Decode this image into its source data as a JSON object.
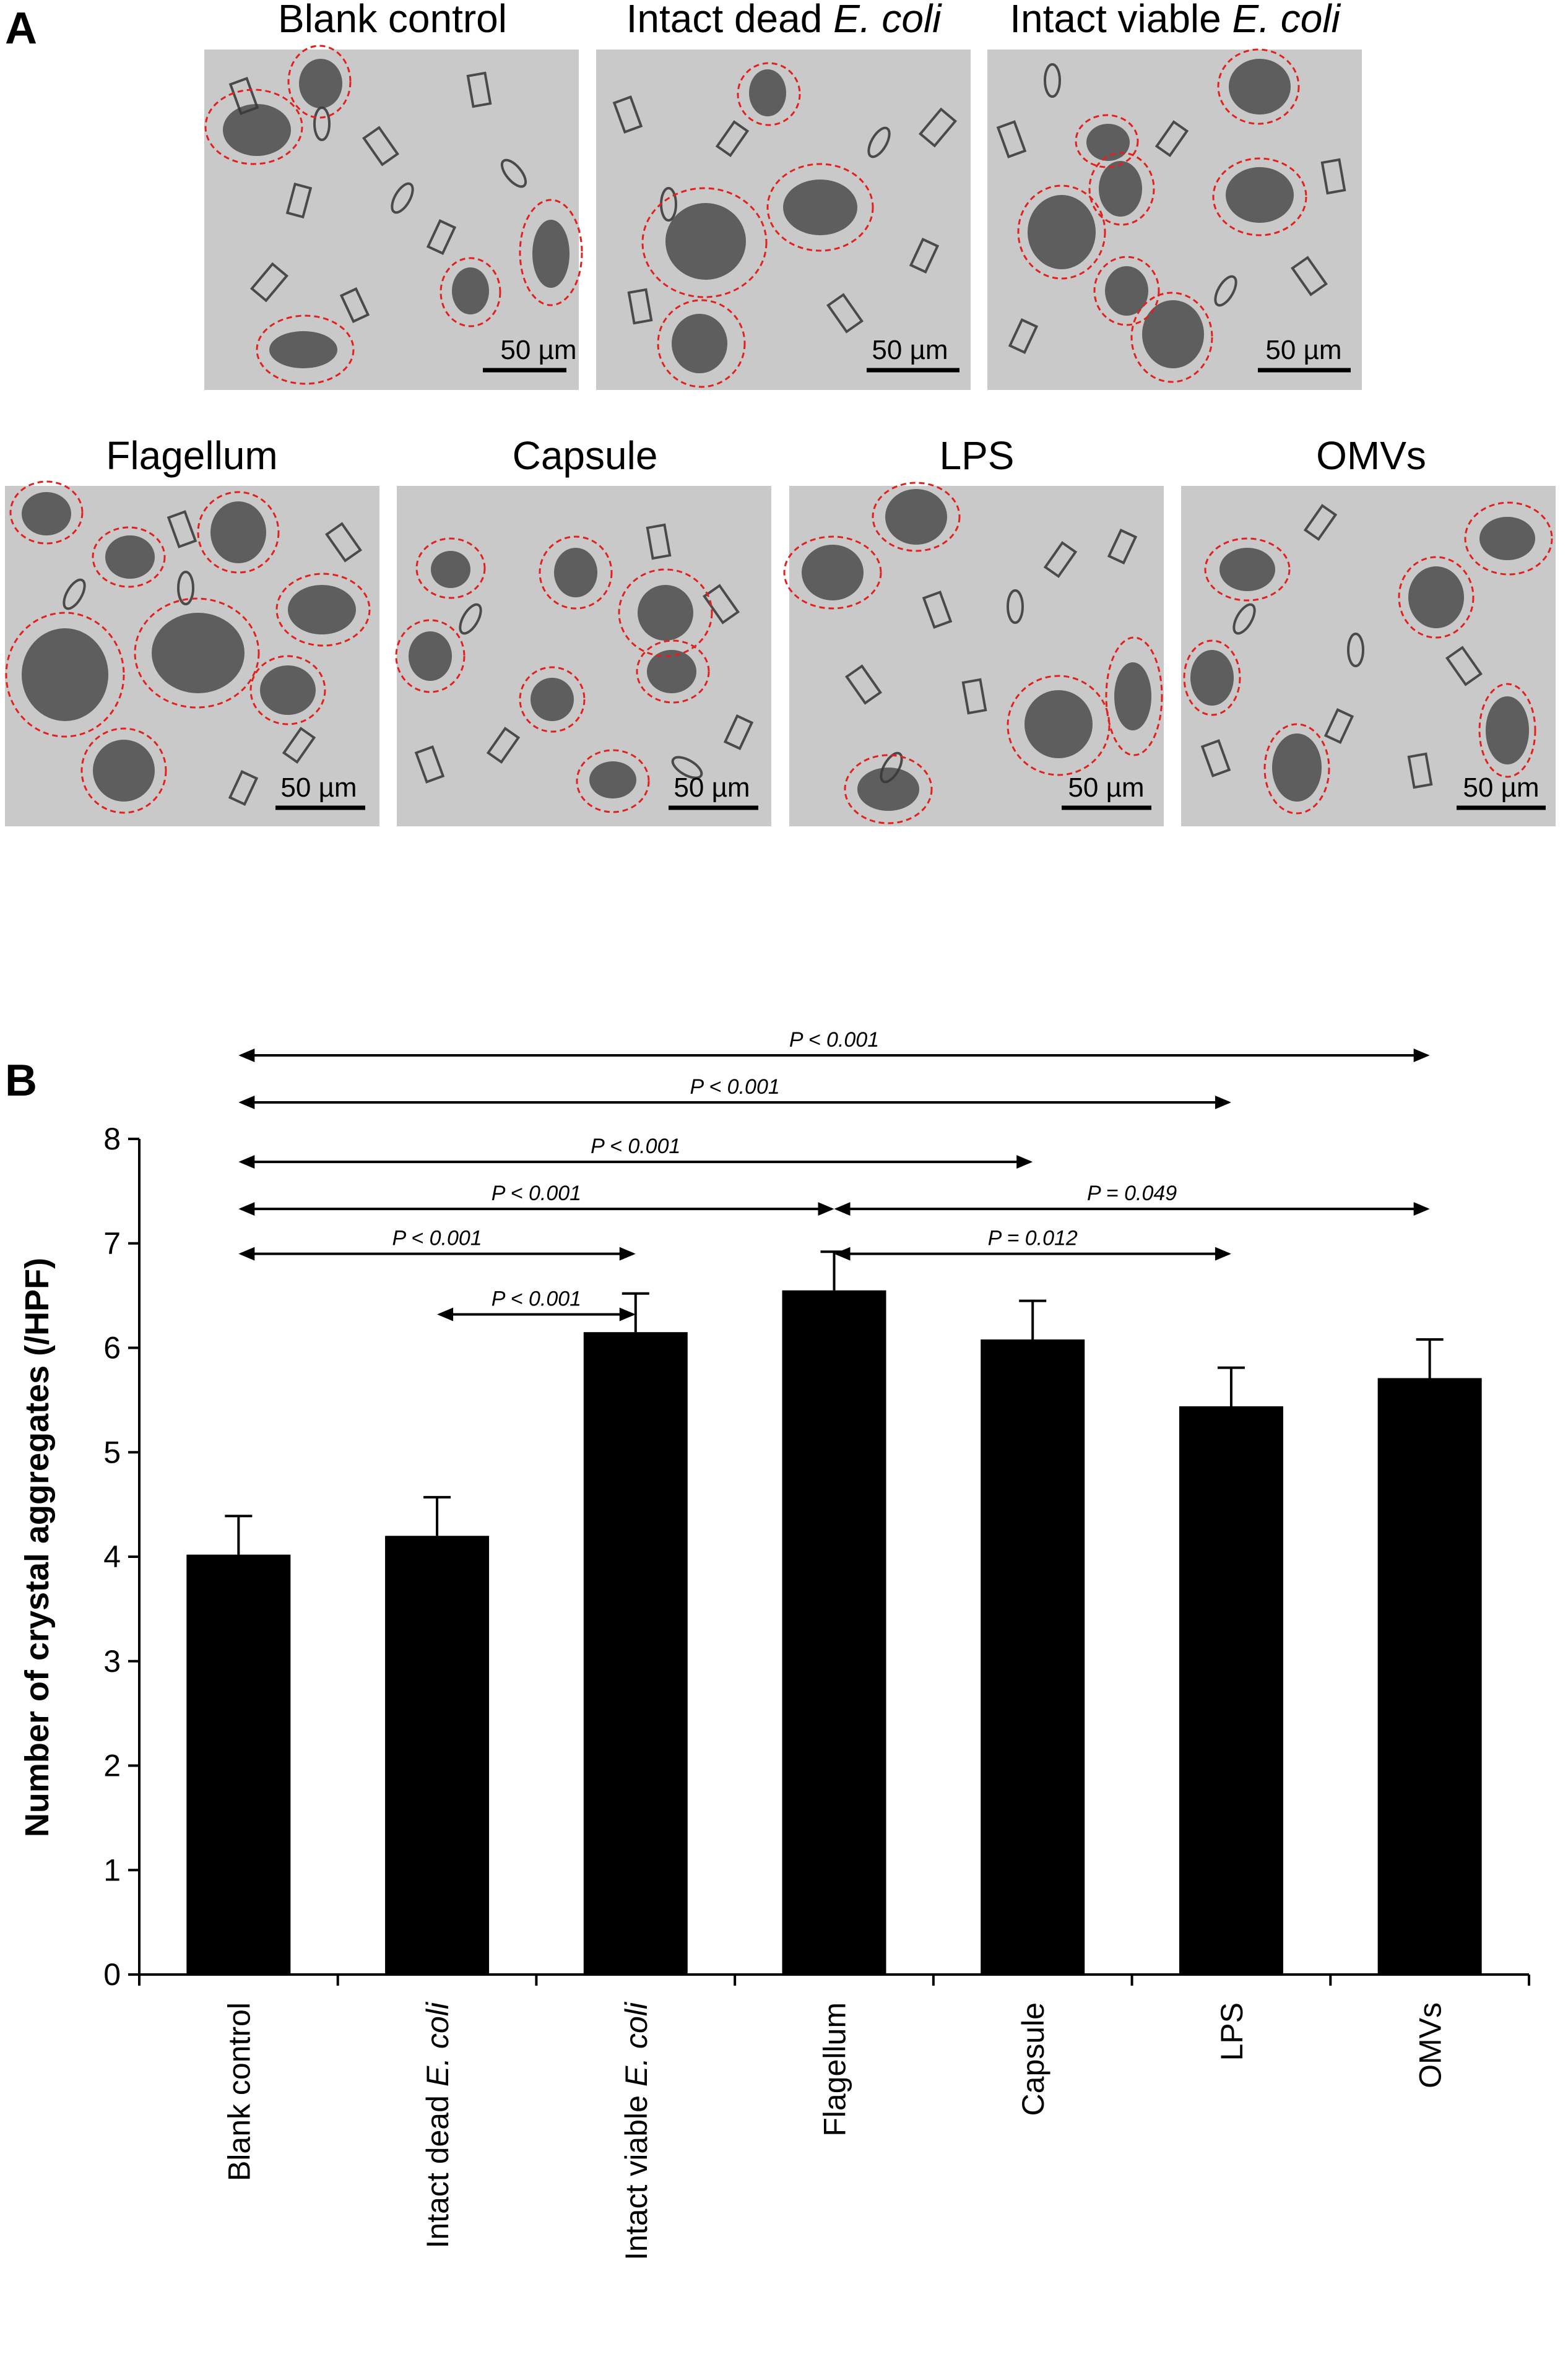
{
  "panel_a": {
    "letter": "A",
    "panels": [
      {
        "title": "Blank control",
        "title_italic": "",
        "scale": "50 µm"
      },
      {
        "title": "Intact dead ",
        "title_italic": "E. coli",
        "scale": "50 µm"
      },
      {
        "title": "Intact viable ",
        "title_italic": "E. coli",
        "scale": "50 µm"
      },
      {
        "title": "Flagellum",
        "title_italic": "",
        "scale": "50 µm"
      },
      {
        "title": "Capsule",
        "title_italic": "",
        "scale": "50 µm"
      },
      {
        "title": "LPS",
        "title_italic": "",
        "scale": "50 µm"
      },
      {
        "title": "OMVs",
        "title_italic": "",
        "scale": "50 µm"
      }
    ]
  },
  "panel_b": {
    "letter": "B"
  },
  "colors": {
    "bar": "#000000",
    "circle": "#e0211d",
    "micrograph_bg": "#c9c9c9"
  },
  "chart_data": {
    "type": "bar",
    "title": "",
    "ylabel": "Number of crystal aggregates (/HPF)",
    "xlabel": "",
    "ylim": [
      0,
      8
    ],
    "yticks": [
      0,
      1,
      2,
      3,
      4,
      5,
      6,
      7,
      8
    ],
    "grid": false,
    "categories": [
      {
        "plain": "Blank control",
        "italic": ""
      },
      {
        "plain": "Intact dead ",
        "italic": "E. coli"
      },
      {
        "plain": "Intact viable ",
        "italic": "E. coli"
      },
      {
        "plain": "Flagellum",
        "italic": ""
      },
      {
        "plain": "Capsule",
        "italic": ""
      },
      {
        "plain": "LPS",
        "italic": ""
      },
      {
        "plain": "OMVs",
        "italic": ""
      }
    ],
    "values": [
      4.02,
      4.2,
      6.15,
      6.55,
      6.08,
      5.44,
      5.71
    ],
    "errors": [
      0.37,
      0.37,
      0.37,
      0.37,
      0.37,
      0.37,
      0.37
    ],
    "comparisons": [
      {
        "from": 0,
        "to": 6,
        "label": "P < 0.001",
        "y": 8.8
      },
      {
        "from": 0,
        "to": 5,
        "label": "P < 0.001",
        "y": 8.35
      },
      {
        "from": 0,
        "to": 4,
        "label": "P < 0.001",
        "y": 7.78
      },
      {
        "from": 0,
        "to": 3,
        "label": "P < 0.001",
        "y": 7.33
      },
      {
        "from": 3,
        "to": 6,
        "label": "P = 0.049",
        "y": 7.33
      },
      {
        "from": 0,
        "to": 2,
        "label": "P < 0.001",
        "y": 6.9
      },
      {
        "from": 3,
        "to": 5,
        "label": "P = 0.012",
        "y": 6.9
      },
      {
        "from": 1,
        "to": 2,
        "label": "P < 0.001",
        "y": 6.32
      }
    ]
  }
}
